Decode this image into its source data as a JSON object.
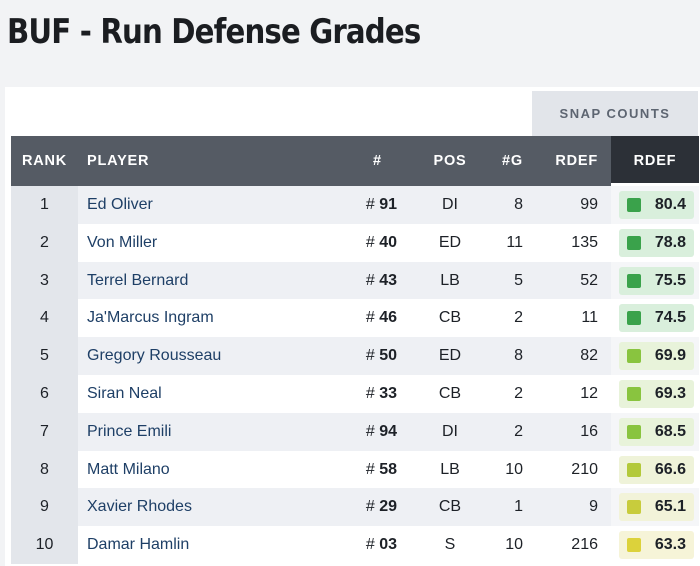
{
  "page": {
    "title": "BUF - Run Defense Grades"
  },
  "table": {
    "group_header": "SNAP COUNTS",
    "columns": {
      "rank": "RANK",
      "player": "PLAYER",
      "jersey": "#",
      "pos": "POS",
      "games": "#G",
      "snaps": "RDEF",
      "grade": "RDEF"
    },
    "rows": [
      {
        "rank": "1",
        "player": "Ed Oliver",
        "hash": "#",
        "jersey": "91",
        "pos": "DI",
        "games": "8",
        "snaps": "99",
        "grade": "80.4",
        "grade_color": "#3aa24b",
        "pill_color": "#d9efdc"
      },
      {
        "rank": "2",
        "player": "Von Miller",
        "hash": "#",
        "jersey": "40",
        "pos": "ED",
        "games": "11",
        "snaps": "135",
        "grade": "78.8",
        "grade_color": "#3aa24b",
        "pill_color": "#d9efdc"
      },
      {
        "rank": "3",
        "player": "Terrel Bernard",
        "hash": "#",
        "jersey": "43",
        "pos": "LB",
        "games": "5",
        "snaps": "52",
        "grade": "75.5",
        "grade_color": "#3aa24b",
        "pill_color": "#d9efdc"
      },
      {
        "rank": "4",
        "player": "Ja'Marcus Ingram",
        "hash": "#",
        "jersey": "46",
        "pos": "CB",
        "games": "2",
        "snaps": "11",
        "grade": "74.5",
        "grade_color": "#3aa24b",
        "pill_color": "#d9efdc"
      },
      {
        "rank": "5",
        "player": "Gregory Rousseau",
        "hash": "#",
        "jersey": "50",
        "pos": "ED",
        "games": "8",
        "snaps": "82",
        "grade": "69.9",
        "grade_color": "#89c43f",
        "pill_color": "#e8f3da"
      },
      {
        "rank": "6",
        "player": "Siran Neal",
        "hash": "#",
        "jersey": "33",
        "pos": "CB",
        "games": "2",
        "snaps": "12",
        "grade": "69.3",
        "grade_color": "#89c43f",
        "pill_color": "#e8f3da"
      },
      {
        "rank": "7",
        "player": "Prince Emili",
        "hash": "#",
        "jersey": "94",
        "pos": "DI",
        "games": "2",
        "snaps": "16",
        "grade": "68.5",
        "grade_color": "#89c43f",
        "pill_color": "#e8f3da"
      },
      {
        "rank": "8",
        "player": "Matt Milano",
        "hash": "#",
        "jersey": "58",
        "pos": "LB",
        "games": "10",
        "snaps": "210",
        "grade": "66.6",
        "grade_color": "#b3c93a",
        "pill_color": "#eff3d9"
      },
      {
        "rank": "9",
        "player": "Xavier Rhodes",
        "hash": "#",
        "jersey": "29",
        "pos": "CB",
        "games": "1",
        "snaps": "9",
        "grade": "65.1",
        "grade_color": "#c8cc3c",
        "pill_color": "#f2f3d9"
      },
      {
        "rank": "10",
        "player": "Damar Hamlin",
        "hash": "#",
        "jersey": "03",
        "pos": "S",
        "games": "10",
        "snaps": "216",
        "grade": "63.3",
        "grade_color": "#dcd23b",
        "pill_color": "#f6f4d8"
      }
    ]
  }
}
